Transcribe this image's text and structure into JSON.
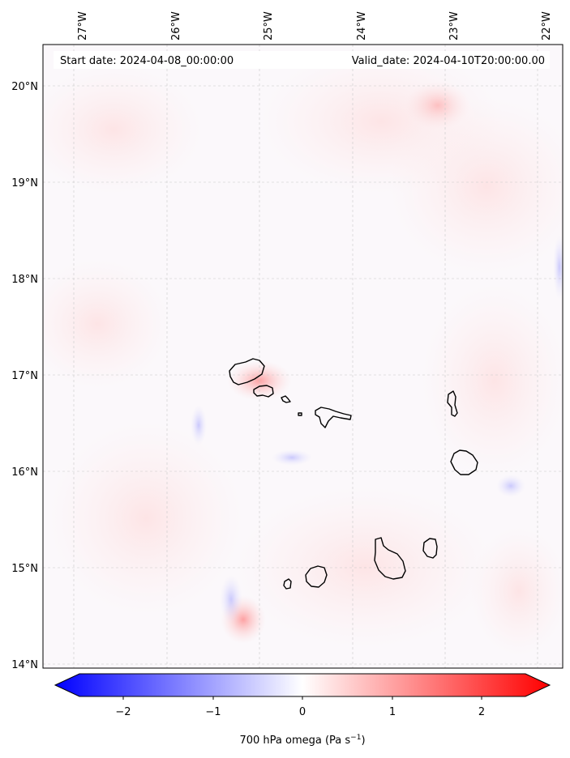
{
  "header": {
    "start_date": "Start date: 2024-04-08_00:00:00",
    "valid_date": "Valid_date: 2024-04-10T20:00:00.00"
  },
  "map": {
    "lon_labels": [
      "27°W",
      "26°W",
      "25°W",
      "24°W",
      "23°W",
      "22°W"
    ],
    "lon_values": [
      -27,
      -26,
      -25,
      -24,
      -23,
      -22
    ],
    "lat_labels": [
      "20°N",
      "19°N",
      "18°N",
      "17°N",
      "16°N",
      "15°N",
      "14°N"
    ],
    "lat_values": [
      20,
      19,
      18,
      17,
      16,
      15,
      14
    ],
    "gridlines": true,
    "islands": [
      "Santo Antão",
      "São Vicente",
      "Santa Luzia",
      "Ilhéu Branco",
      "São Nicolau",
      "Sal",
      "Boa Vista",
      "Maio",
      "Santiago",
      "Fogo",
      "Brava"
    ]
  },
  "colorbar": {
    "ticks": [
      "−2",
      "−1",
      "0",
      "1",
      "2"
    ],
    "tick_values": [
      -2,
      -1,
      0,
      1,
      2
    ],
    "range": [
      -2.6,
      2.6
    ],
    "label_main": "700 hPa omega (Pa s",
    "label_sup": "−1",
    "label_end": ")",
    "colors": {
      "negative": "#0000ff",
      "zero": "#ffffff",
      "positive": "#ff0000"
    }
  }
}
